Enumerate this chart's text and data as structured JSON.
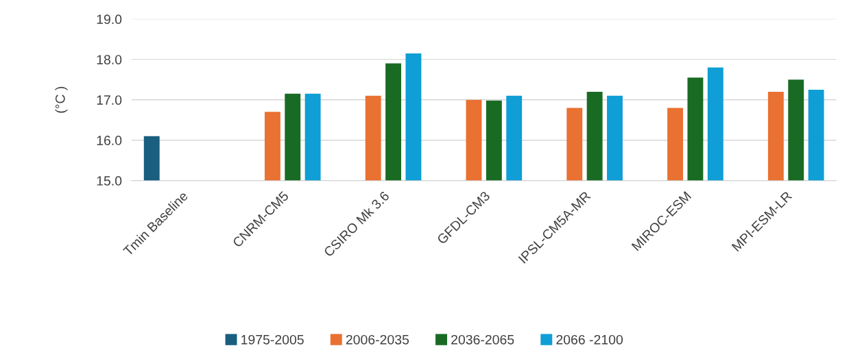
{
  "chart_data": {
    "type": "bar",
    "ylabel": "(°C )",
    "categories": [
      "Tmin Baseline",
      "CNRM-CM5",
      "CSIRO Mk 3.6",
      "GFDL-CM3",
      "IPSL-CM5A-MR",
      "MIROC-ESM",
      "MPI-ESM-LR"
    ],
    "series": [
      {
        "name": "1975-2005",
        "color": "#1a5e80",
        "values": [
          16.1,
          null,
          null,
          null,
          null,
          null,
          null
        ]
      },
      {
        "name": "2006-2035",
        "color": "#e97132",
        "values": [
          null,
          16.7,
          17.1,
          17.0,
          16.8,
          16.8,
          17.2
        ]
      },
      {
        "name": "2036-2065",
        "color": "#196b24",
        "values": [
          null,
          17.15,
          17.9,
          16.98,
          17.2,
          17.55,
          17.5
        ]
      },
      {
        "name": "2066 -2100",
        "color": "#0f9ed5",
        "values": [
          null,
          17.15,
          18.15,
          17.1,
          17.1,
          17.8,
          17.25
        ]
      }
    ],
    "ylim": [
      15.0,
      19.0
    ],
    "yticks": [
      {
        "value": 15,
        "label": "15.0"
      },
      {
        "value": 16,
        "label": "16.0"
      },
      {
        "value": 17,
        "label": "17.0"
      },
      {
        "value": 18,
        "label": "18.0"
      },
      {
        "value": 19,
        "label": "19.0"
      }
    ],
    "grid": "y",
    "legend": "bottom"
  }
}
